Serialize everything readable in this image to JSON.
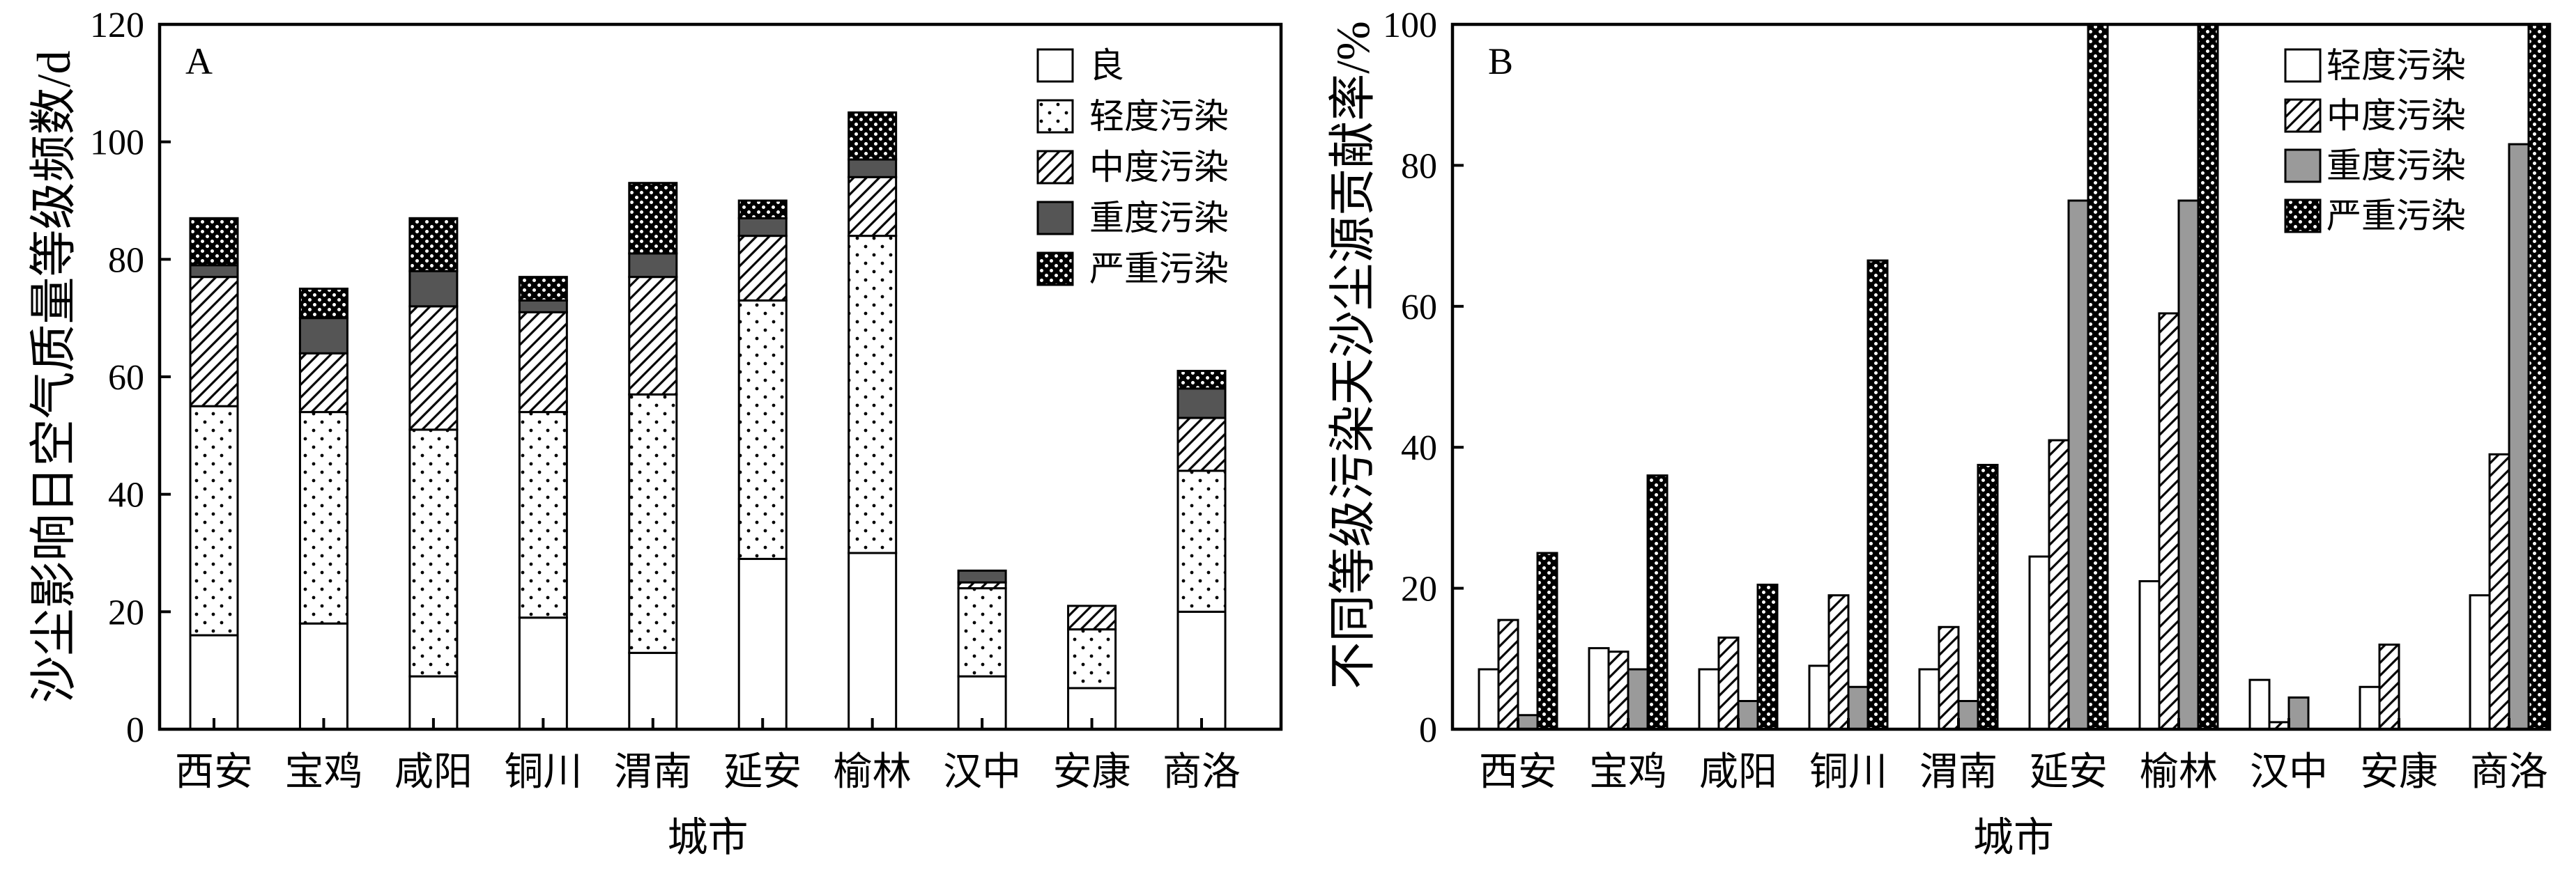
{
  "chart_data": [
    {
      "panel_label": "A",
      "type": "bar",
      "stacked": true,
      "categories": [
        "西安",
        "宝鸡",
        "咸阳",
        "铜川",
        "渭南",
        "延安",
        "榆林",
        "汉中",
        "安康",
        "商洛"
      ],
      "series": [
        {
          "name": "良",
          "values": [
            16,
            18,
            9,
            19,
            13,
            29,
            30,
            9,
            7,
            20
          ]
        },
        {
          "name": "轻度污染",
          "values": [
            39,
            36,
            42,
            35,
            44,
            44,
            54,
            15,
            10,
            24
          ]
        },
        {
          "name": "中度污染",
          "values": [
            22,
            10,
            21,
            17,
            20,
            11,
            10,
            1,
            4,
            9
          ]
        },
        {
          "name": "重度污染",
          "values": [
            2,
            6,
            6,
            2,
            4,
            3,
            3,
            2,
            0,
            5
          ]
        },
        {
          "name": "严重污染",
          "values": [
            8,
            5,
            9,
            4,
            12,
            3,
            8,
            0,
            0,
            3
          ]
        }
      ],
      "xlabel": "城市",
      "ylabel": "沙尘影响日空气质量等级频数/d",
      "ylim": [
        0,
        120
      ],
      "yticks": [
        0,
        20,
        40,
        60,
        80,
        100,
        120
      ],
      "legend": "top-right",
      "grid": false
    },
    {
      "panel_label": "B",
      "type": "bar",
      "stacked": false,
      "categories": [
        "西安",
        "宝鸡",
        "咸阳",
        "铜川",
        "渭南",
        "延安",
        "榆林",
        "汉中",
        "安康",
        "商洛"
      ],
      "series": [
        {
          "name": "轻度污染",
          "values": [
            8.5,
            11.5,
            8.5,
            9,
            8.5,
            24.5,
            21,
            7,
            6,
            19
          ]
        },
        {
          "name": "中度污染",
          "values": [
            15.5,
            11,
            13,
            19,
            14.5,
            41,
            59,
            1,
            12,
            39
          ]
        },
        {
          "name": "重度污染",
          "values": [
            2,
            8.5,
            4,
            6,
            4,
            75,
            75,
            4.5,
            0,
            83
          ]
        },
        {
          "name": "严重污染",
          "values": [
            25,
            36,
            20.5,
            66.5,
            37.5,
            100,
            100,
            0,
            0,
            100
          ]
        }
      ],
      "xlabel": "城市",
      "ylabel": "不同等级污染天沙尘源贡献率/%",
      "ylim": [
        0,
        100
      ],
      "yticks": [
        0,
        20,
        40,
        60,
        80,
        100
      ],
      "legend": "top-right",
      "grid": false
    }
  ]
}
